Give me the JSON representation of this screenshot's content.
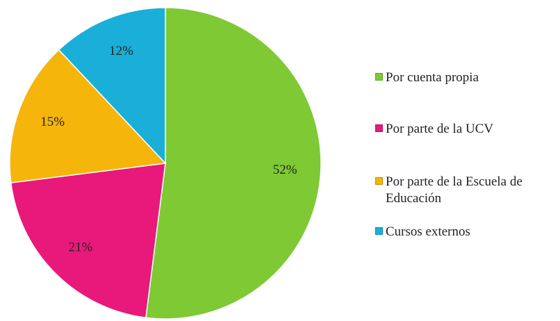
{
  "chart_data": {
    "type": "pie",
    "categories": [
      "Por cuenta propia",
      "Por parte de la UCV",
      "Por parte de la Escuela de Educación",
      "Cursos externos"
    ],
    "values": [
      52,
      21,
      15,
      12
    ],
    "value_labels": [
      "52%",
      "21%",
      "15%",
      "12%"
    ],
    "colors": [
      "#7fc934",
      "#e8197a",
      "#f5b50a",
      "#1aafd8"
    ],
    "legend": "right"
  }
}
